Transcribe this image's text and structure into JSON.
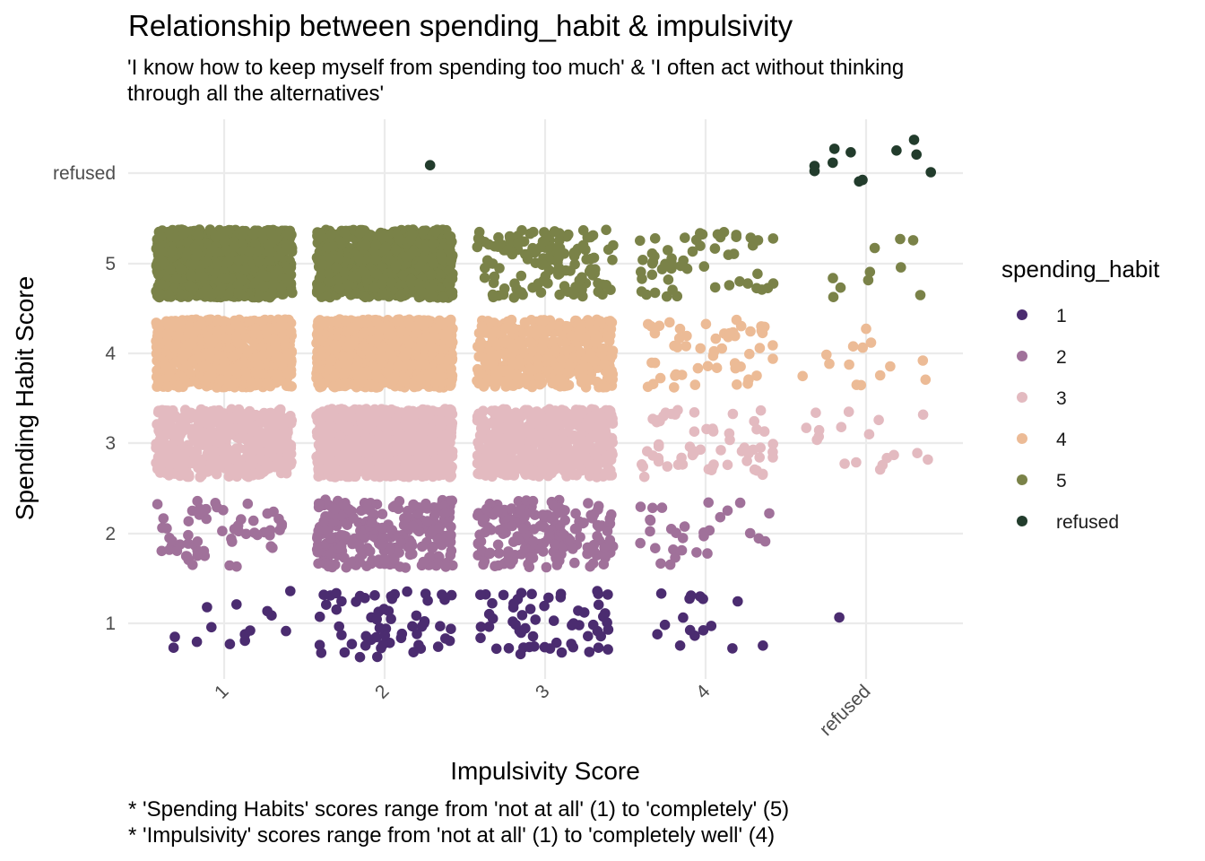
{
  "chart_data": {
    "type": "scatter",
    "jitter": true,
    "title": "Relationship between spending_habit & impulsivity",
    "subtitle": [
      "'I know how to keep myself from spending too much' & 'I often act without thinking",
      "through all the alternatives'"
    ],
    "xlabel": "Impulsivity Score",
    "ylabel": "Spending Habit Score",
    "x_categories": [
      "1",
      "2",
      "3",
      "4",
      "refused"
    ],
    "y_categories": [
      "1",
      "2",
      "3",
      "4",
      "5",
      "refused"
    ],
    "legend": {
      "title": "spending_habit",
      "placement": "right",
      "entries": [
        {
          "label": "1",
          "color": "#4B2C70"
        },
        {
          "label": "2",
          "color": "#A0719A"
        },
        {
          "label": "3",
          "color": "#E3BAC0"
        },
        {
          "label": "4",
          "color": "#ECBB96"
        },
        {
          "label": "5",
          "color": "#7A8248"
        },
        {
          "label": "refused",
          "color": "#223C2C"
        }
      ]
    },
    "approx_point_counts": [
      {
        "impulsivity": "1",
        "counts": {
          "1": 14,
          "2": 60,
          "3": 480,
          "4": 850,
          "5": 1150
        }
      },
      {
        "impulsivity": "2",
        "counts": {
          "1": 60,
          "2": 280,
          "3": 1100,
          "4": 1100,
          "5": 850,
          "refused": 1
        }
      },
      {
        "impulsivity": "3",
        "counts": {
          "1": 60,
          "2": 200,
          "3": 550,
          "4": 560,
          "5": 140
        }
      },
      {
        "impulsivity": "4",
        "counts": {
          "1": 16,
          "2": 30,
          "3": 60,
          "4": 55,
          "5": 55
        }
      },
      {
        "impulsivity": "refused",
        "counts": {
          "1": 1,
          "2": 0,
          "3": 18,
          "4": 14,
          "5": 10,
          "refused": 11
        }
      }
    ],
    "grid": true,
    "captions": [
      "* 'Spending Habits' scores range from 'not at all' (1) to 'completely' (5)",
      "* 'Impulsivity' scores range from 'not at all' (1) to 'completely well' (4)"
    ]
  }
}
